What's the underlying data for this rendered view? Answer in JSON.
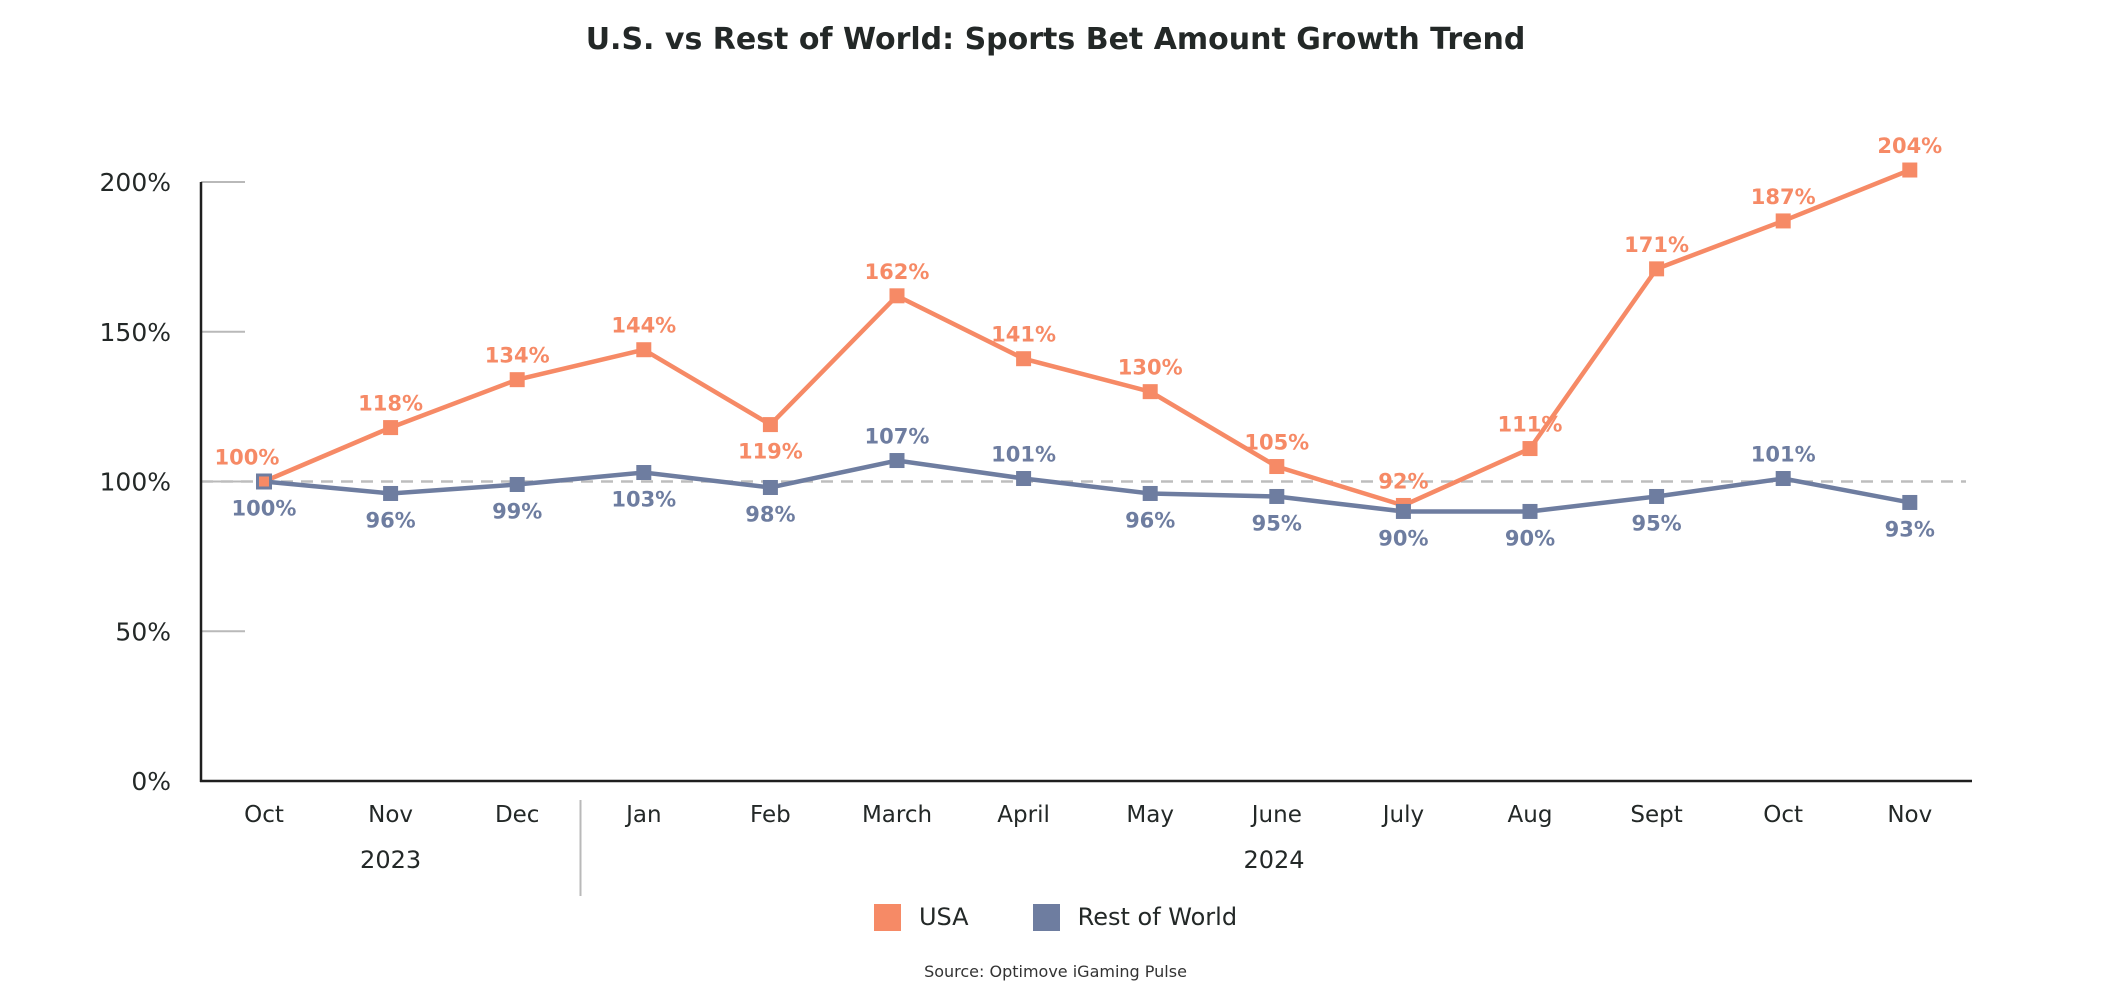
{
  "chart_data": {
    "type": "line",
    "title": "U.S. vs Rest of World: Sports Bet Amount Growth Trend",
    "xlabel": "",
    "ylabel": "",
    "categories": [
      "Oct",
      "Nov",
      "Dec",
      "Jan",
      "Feb",
      "March",
      "April",
      "May",
      "June",
      "July",
      "Aug",
      "Sept",
      "Oct",
      "Nov"
    ],
    "year_groups": [
      {
        "label": "2023",
        "start_index": 0,
        "end_index": 2
      },
      {
        "label": "2024",
        "start_index": 3,
        "end_index": 13
      }
    ],
    "ylim": [
      0,
      200
    ],
    "yticks": [
      0,
      50,
      100,
      150,
      200
    ],
    "ytick_labels": [
      "0%",
      "50%",
      "100%",
      "150%",
      "200%"
    ],
    "reference_line": {
      "value": 100,
      "style": "dashed"
    },
    "grid": false,
    "legend_position": "bottom-center",
    "series": [
      {
        "name": "USA",
        "color": "#F68A66",
        "values": [
          100,
          118,
          134,
          144,
          119,
          162,
          141,
          130,
          105,
          92,
          111,
          171,
          187,
          204
        ],
        "labels": [
          "100%",
          "118%",
          "134%",
          "144%",
          "119%",
          "162%",
          "141%",
          "130%",
          "105%",
          "92%",
          "111%",
          "171%",
          "187%",
          "204%"
        ],
        "label_positions": [
          "above",
          "above",
          "above",
          "above",
          "below",
          "above",
          "above",
          "above",
          "above",
          "above",
          "above",
          "above",
          "above",
          "above"
        ]
      },
      {
        "name": "Rest of World",
        "color": "#6E7DA0",
        "values": [
          100,
          96,
          99,
          103,
          98,
          107,
          101,
          96,
          95,
          90,
          90,
          95,
          101,
          93
        ],
        "labels": [
          "100%",
          "96%",
          "99%",
          "103%",
          "98%",
          "107%",
          "101%",
          "96%",
          "95%",
          "90%",
          "90%",
          "95%",
          "101%",
          "93%"
        ],
        "label_positions": [
          "below",
          "below",
          "below",
          "below",
          "below",
          "above",
          "above",
          "below",
          "below",
          "below",
          "below",
          "below",
          "above",
          "below"
        ]
      }
    ]
  },
  "legend": {
    "items": [
      {
        "label": "USA",
        "color": "#F68A66"
      },
      {
        "label": "Rest of World",
        "color": "#6E7DA0"
      }
    ]
  },
  "source": "Source: Optimove iGaming Pulse"
}
